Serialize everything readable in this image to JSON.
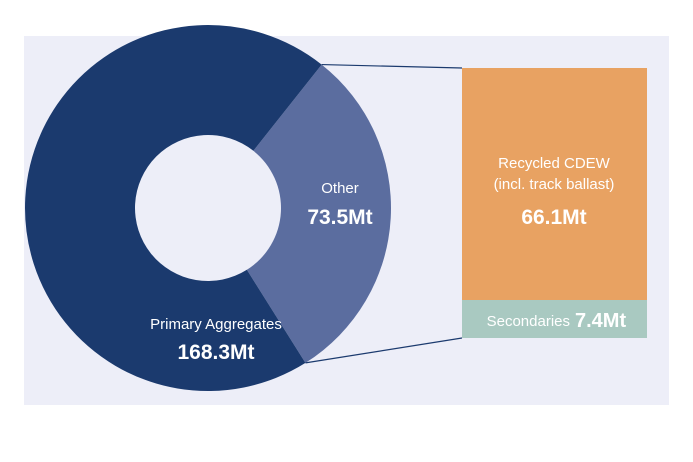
{
  "chart_data": {
    "type": "pie",
    "title": "",
    "main": {
      "slices": [
        {
          "label": "Primary Aggregates",
          "value_text": "168.3Mt",
          "value": 168.3,
          "color": "#1b3a6e"
        },
        {
          "label": "Other",
          "value_text": "73.5Mt",
          "value": 73.5,
          "color": "#5b6d9f"
        }
      ]
    },
    "breakdown": {
      "of": "Other",
      "segments": [
        {
          "label": "Recycled CDEW",
          "sublabel": "(incl. track ballast)",
          "value_text": "66.1Mt",
          "value": 66.1,
          "color": "#e8a262"
        },
        {
          "label": "Secondaries",
          "value_text": "7.4Mt",
          "value": 7.4,
          "color": "#a9c9c1"
        }
      ]
    },
    "connector_color": "#1b3a6e",
    "background": "#edeef8"
  }
}
